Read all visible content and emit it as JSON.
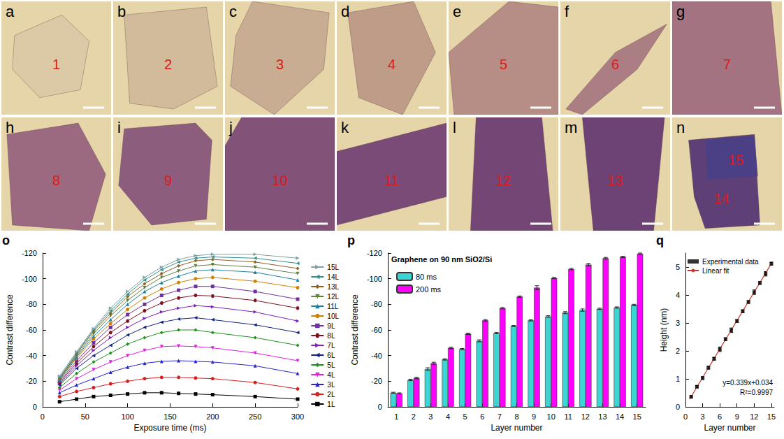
{
  "images": [
    {
      "panel": "a",
      "labels": [
        "1"
      ],
      "color": "#dccaa6"
    },
    {
      "panel": "b",
      "labels": [
        "2"
      ],
      "color": "#d2bb9a"
    },
    {
      "panel": "c",
      "labels": [
        "3"
      ],
      "color": "#c9ad92"
    },
    {
      "panel": "d",
      "labels": [
        "4"
      ],
      "color": "#bf9c88"
    },
    {
      "panel": "e",
      "labels": [
        "5"
      ],
      "color": "#b78e85"
    },
    {
      "panel": "f",
      "labels": [
        "6"
      ],
      "color": "#aa7e83"
    },
    {
      "panel": "g",
      "labels": [
        "7"
      ],
      "color": "#a37381"
    },
    {
      "panel": "h",
      "labels": [
        "8"
      ],
      "color": "#9b6a80"
    },
    {
      "panel": "i",
      "labels": [
        "9"
      ],
      "color": "#8d5d7d"
    },
    {
      "panel": "j",
      "labels": [
        "10"
      ],
      "color": "#825279"
    },
    {
      "panel": "k",
      "labels": [
        "11"
      ],
      "color": "#7b4b78"
    },
    {
      "panel": "l",
      "labels": [
        "12"
      ],
      "color": "#744676"
    },
    {
      "panel": "m",
      "labels": [
        "13"
      ],
      "color": "#6c4374"
    },
    {
      "panel": "n",
      "labels": [
        "15",
        "14"
      ],
      "colors": [
        "#4b3f86",
        "#5f4076"
      ]
    }
  ],
  "chart_data": [
    {
      "type": "line",
      "panel": "o",
      "x_label": "Exposure time (ms)",
      "y_label": "Contrast difference",
      "x": [
        20,
        40,
        60,
        80,
        100,
        120,
        140,
        160,
        180,
        200,
        250,
        300
      ],
      "xlim": [
        0,
        300
      ],
      "xticks": [
        0,
        50,
        100,
        150,
        200,
        250,
        300
      ],
      "ylim": [
        0,
        -120
      ],
      "yticks": [
        0,
        -20,
        -40,
        -60,
        -80,
        -100,
        -120
      ],
      "grid": false,
      "legend": "right",
      "series": [
        {
          "name": "1L",
          "color": "#000000",
          "marker": "square",
          "values": [
            -4,
            -6,
            -8,
            -9,
            -10,
            -11,
            -11,
            -10.5,
            -10,
            -9.5,
            -8,
            -6
          ]
        },
        {
          "name": "2L",
          "color": "#d62020",
          "marker": "circle",
          "values": [
            -8,
            -12,
            -15,
            -18,
            -20,
            -22,
            -23,
            -23,
            -22.5,
            -22,
            -19,
            -14
          ]
        },
        {
          "name": "3L",
          "color": "#2424d0",
          "marker": "triangle",
          "values": [
            -11,
            -17,
            -22,
            -27,
            -31,
            -34,
            -35.5,
            -36,
            -35.5,
            -35,
            -32,
            -26
          ]
        },
        {
          "name": "4L",
          "color": "#e020e0",
          "marker": "triangle-down",
          "values": [
            -13,
            -22,
            -29,
            -35,
            -40,
            -44,
            -47,
            -47.5,
            -47,
            -46,
            -42,
            -36
          ]
        },
        {
          "name": "5L",
          "color": "#209020",
          "marker": "diamond",
          "values": [
            -15,
            -26,
            -35,
            -42,
            -49,
            -54,
            -58,
            -60,
            -60,
            -58,
            -54,
            -48
          ]
        },
        {
          "name": "6L",
          "color": "#102080",
          "marker": "triangle-left",
          "values": [
            -17,
            -30,
            -40,
            -48,
            -56,
            -62,
            -66,
            -68.5,
            -69.5,
            -68,
            -64,
            -58
          ]
        },
        {
          "name": "7L",
          "color": "#8020c0",
          "marker": "triangle-right",
          "values": [
            -18,
            -32,
            -44,
            -54,
            -62,
            -69,
            -74,
            -77,
            -79,
            -78,
            -74,
            -67
          ]
        },
        {
          "name": "8L",
          "color": "#801020",
          "marker": "hexagon",
          "values": [
            -19,
            -34,
            -47,
            -58,
            -67,
            -75,
            -81,
            -85,
            -87,
            -86.5,
            -83,
            -77
          ]
        },
        {
          "name": "9L",
          "color": "#7030a0",
          "marker": "square",
          "values": [
            -20,
            -36,
            -50,
            -62,
            -72,
            -80,
            -87,
            -91,
            -94,
            -94,
            -90,
            -84
          ]
        },
        {
          "name": "10L",
          "color": "#d08000",
          "marker": "circle",
          "values": [
            -21,
            -38,
            -53,
            -65,
            -76,
            -85,
            -92,
            -97,
            -100,
            -101,
            -98,
            -93
          ]
        },
        {
          "name": "11L",
          "color": "#2080a0",
          "marker": "triangle",
          "values": [
            -21,
            -39,
            -55,
            -68,
            -80,
            -90,
            -97,
            -102,
            -106,
            -107,
            -105,
            -99
          ]
        },
        {
          "name": "12L",
          "color": "#608040",
          "marker": "triangle-down",
          "values": [
            -22,
            -40,
            -57,
            -71,
            -83,
            -93,
            -101,
            -106,
            -110,
            -111,
            -109,
            -104
          ]
        },
        {
          "name": "13L",
          "color": "#906020",
          "marker": "diamond",
          "values": [
            -22,
            -41,
            -59,
            -73,
            -86,
            -96,
            -104,
            -110,
            -114,
            -115,
            -113,
            -108
          ]
        },
        {
          "name": "14L",
          "color": "#309090",
          "marker": "triangle-left",
          "values": [
            -23,
            -42,
            -60,
            -75,
            -88,
            -99,
            -107,
            -113,
            -116,
            -117,
            -116,
            -112
          ]
        },
        {
          "name": "15L",
          "color": "#80a0a0",
          "marker": "triangle-right",
          "values": [
            -24,
            -43,
            -61,
            -77,
            -90,
            -101,
            -109,
            -115,
            -118,
            -119,
            -119,
            -116
          ]
        }
      ]
    },
    {
      "type": "bar",
      "panel": "p",
      "title": "Graphene on 90 nm SiO2/Si",
      "x_label": "Layer number",
      "y_label": "Contrast difference",
      "categories": [
        1,
        2,
        3,
        4,
        5,
        6,
        7,
        8,
        9,
        10,
        11,
        12,
        13,
        14,
        15
      ],
      "ylim": [
        0,
        -120
      ],
      "yticks": [
        0,
        -20,
        -40,
        -60,
        -80,
        -100,
        -120
      ],
      "grid": false,
      "legend": "upper left",
      "series": [
        {
          "name": "80 ms",
          "color": "#3cd5d5",
          "values": [
            -11,
            -21,
            -29.5,
            -37,
            -45,
            -51.5,
            -57.5,
            -63,
            -67.5,
            -70.5,
            -73.5,
            -75.5,
            -76.5,
            -77.5,
            -79.5
          ],
          "errors": [
            0.4,
            0.6,
            1.0,
            0.5,
            0.5,
            0.8,
            0.5,
            0.5,
            0.5,
            0.6,
            0.8,
            0.9,
            0.5,
            0.5,
            0.5
          ]
        },
        {
          "name": "200 ms",
          "color": "#ff00ff",
          "values": [
            -10.5,
            -22.5,
            -34,
            -46,
            -57,
            -67.5,
            -77,
            -86,
            -93,
            -100.5,
            -107.5,
            -111,
            -116,
            -117,
            -119.5
          ],
          "errors": [
            0.4,
            0.6,
            0.8,
            0.6,
            0.5,
            0.6,
            0.5,
            0.5,
            1.5,
            0.5,
            0.5,
            1.0,
            0.6,
            0.5,
            0.5
          ]
        }
      ]
    },
    {
      "type": "scatter",
      "panel": "q",
      "x_label": "Layer number",
      "y_label": "Height (nm)",
      "xlim": [
        0,
        15.5
      ],
      "xticks": [
        0,
        3,
        6,
        9,
        12,
        15
      ],
      "ylim": [
        0,
        5.5
      ],
      "yticks": [
        0,
        1,
        2,
        3,
        4,
        5
      ],
      "grid": false,
      "legend": "upper left",
      "annotations": [
        "y=0.339x+0.034",
        "R²=0.9997"
      ],
      "series": [
        {
          "name": "Experimental data",
          "type": "scatter",
          "color": "#000000",
          "marker": "square",
          "x": [
            1,
            2,
            3,
            4,
            5,
            6,
            7,
            8,
            9,
            10,
            11,
            12,
            13,
            14,
            15
          ],
          "values": [
            0.36,
            0.72,
            1.03,
            1.4,
            1.72,
            2.06,
            2.42,
            2.74,
            3.07,
            3.42,
            3.75,
            4.1,
            4.43,
            4.76,
            5.12
          ],
          "errors": [
            0.04,
            0.04,
            0.05,
            0.05,
            0.05,
            0.08,
            0.05,
            0.08,
            0.05,
            0.05,
            0.05,
            0.08,
            0.05,
            0.08,
            0.05
          ]
        },
        {
          "name": "Linear fit",
          "type": "line",
          "color": "#c0392b",
          "line_style": "solid",
          "x": [
            0.7,
            15.2
          ],
          "values": [
            0.27,
            5.19
          ]
        }
      ]
    }
  ]
}
